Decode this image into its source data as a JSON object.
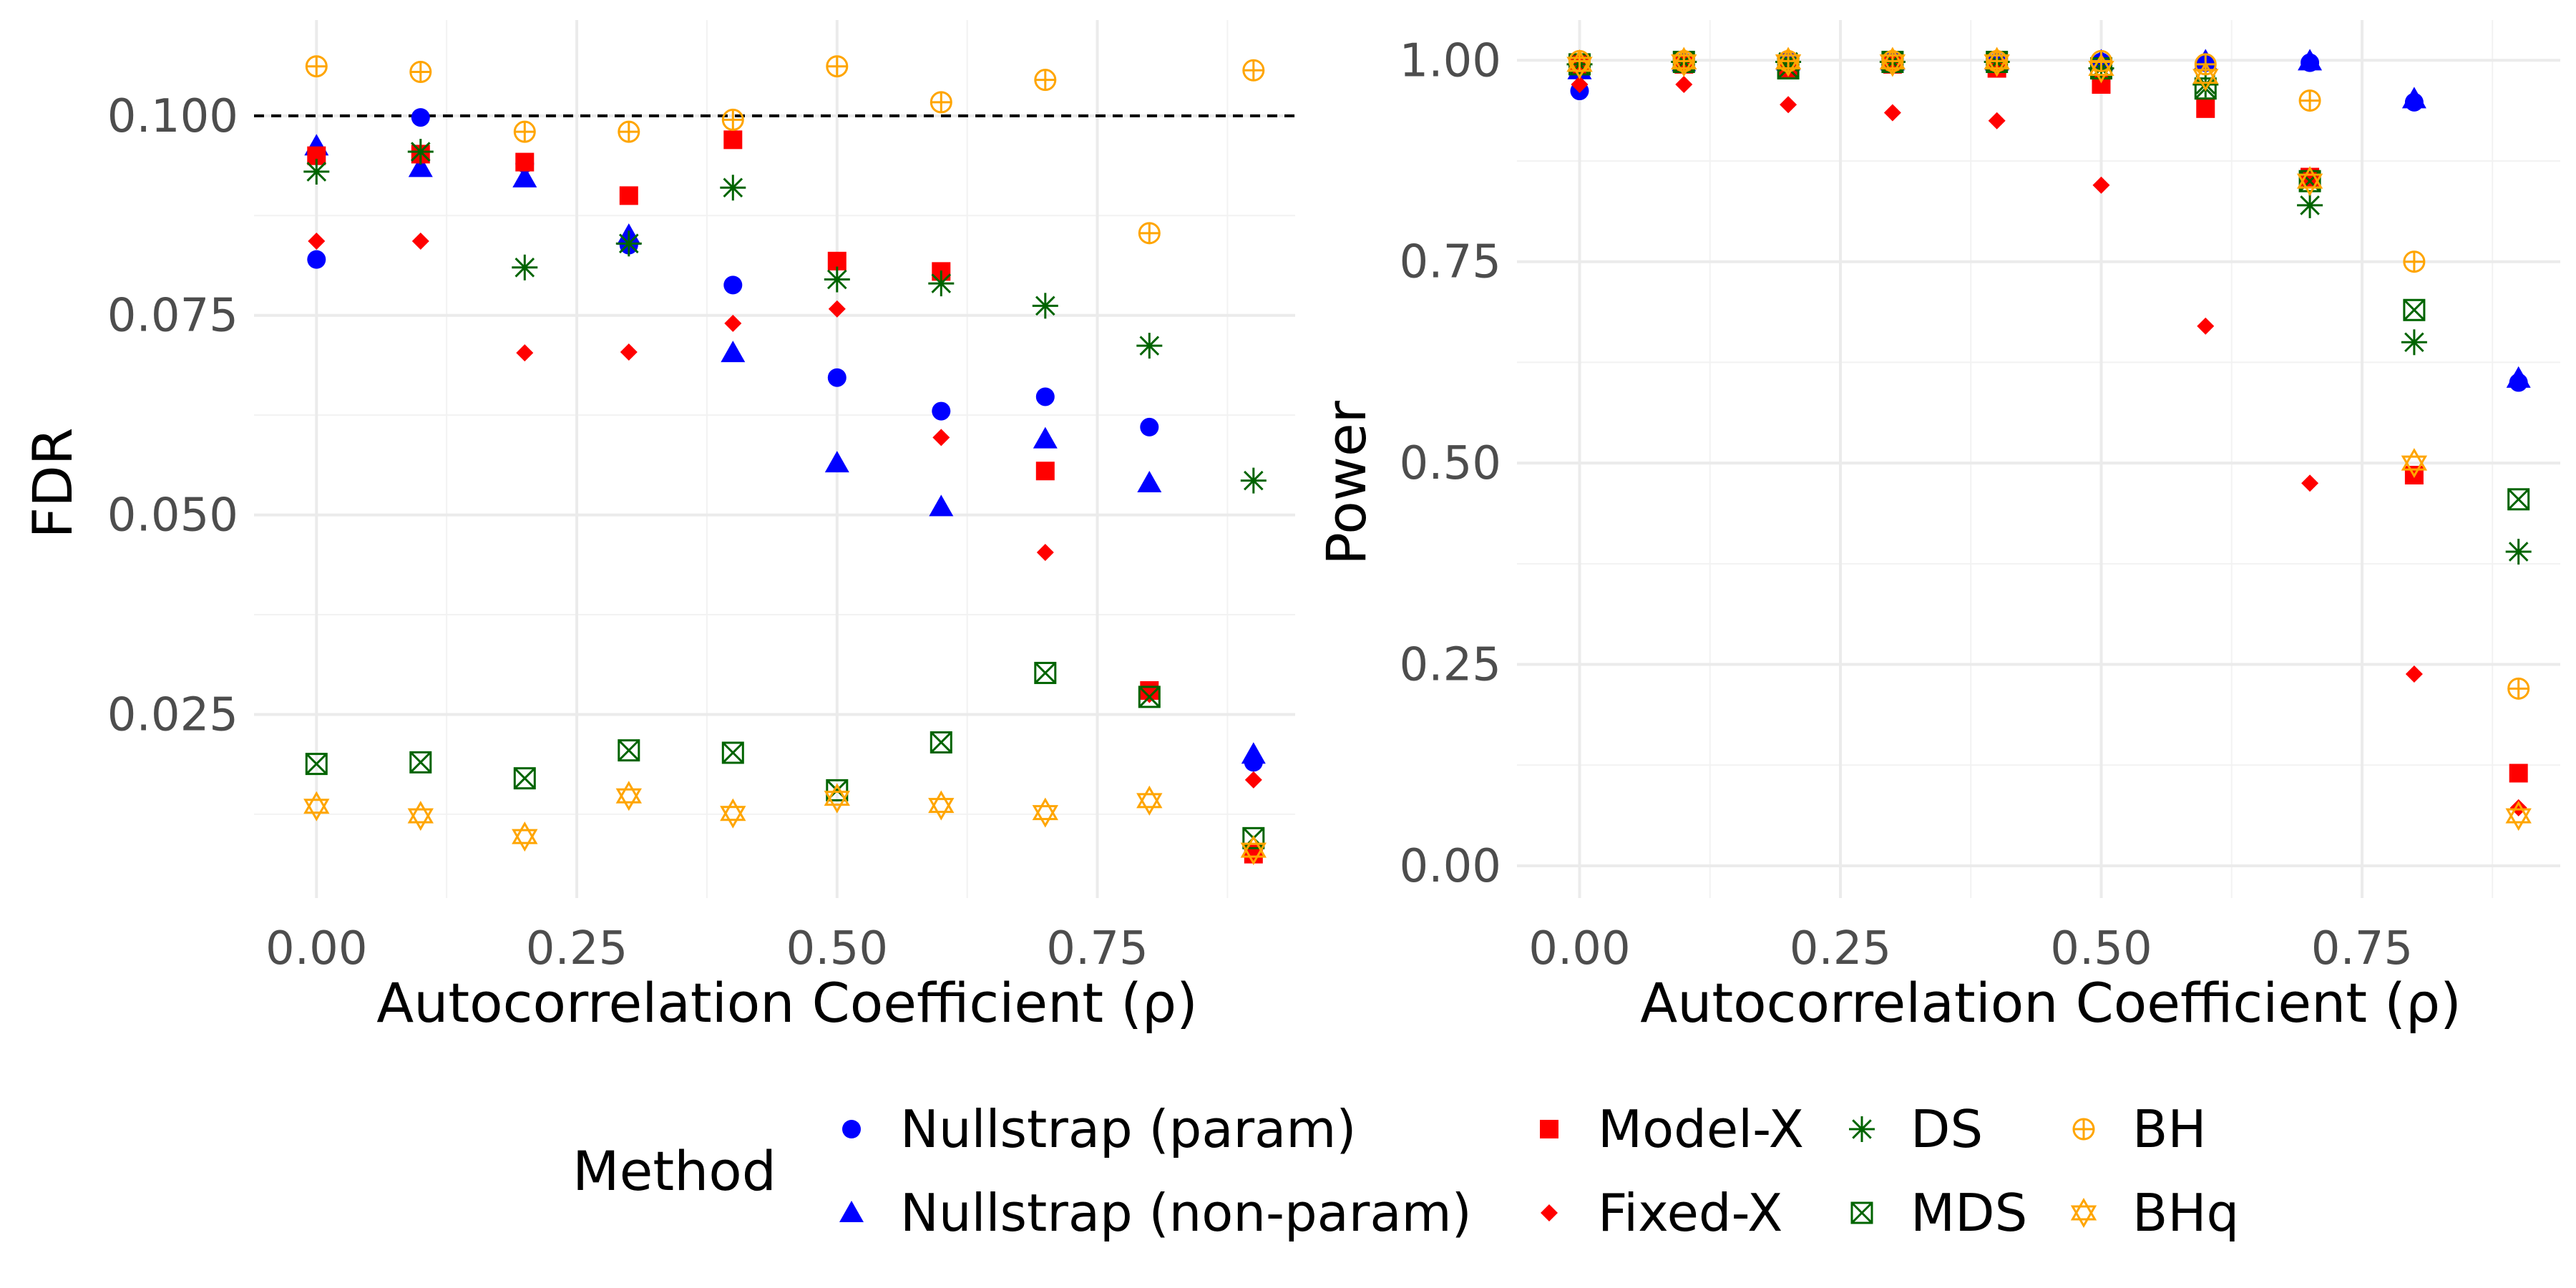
{
  "legend": {
    "title": "Method",
    "entries": [
      {
        "name": "Nullstrap (param)",
        "color": "#0000FF",
        "shape": "filled-circle"
      },
      {
        "name": "Nullstrap (non-param)",
        "color": "#0000FF",
        "shape": "filled-triangle"
      },
      {
        "name": "Model-X",
        "color": "#FF0000",
        "shape": "filled-square"
      },
      {
        "name": "Fixed-X",
        "color": "#FF0000",
        "shape": "filled-diamond"
      },
      {
        "name": "DS",
        "color": "#006400",
        "shape": "asterisk"
      },
      {
        "name": "MDS",
        "color": "#006400",
        "shape": "square-cross"
      },
      {
        "name": "BH",
        "color": "#FFA500",
        "shape": "circle-plus"
      },
      {
        "name": "BHq",
        "color": "#FFA500",
        "shape": "star-of-david"
      }
    ]
  },
  "chart_data": [
    {
      "type": "scatter",
      "title": "",
      "xlabel": "Autocorrelation Coefficient (ρ)",
      "ylabel": "FDR",
      "xlim": [
        -0.06,
        0.94
      ],
      "ylim": [
        0.002,
        0.112
      ],
      "x_ticks": [
        0.0,
        0.25,
        0.5,
        0.75
      ],
      "x_tick_labels": [
        "0.00",
        "0.25",
        "0.50",
        "0.75"
      ],
      "y_ticks": [
        0.025,
        0.05,
        0.075,
        0.1
      ],
      "y_tick_labels": [
        "0.025",
        "0.050",
        "0.075",
        "0.100"
      ],
      "reference_line": {
        "y": 0.1,
        "style": "dashed"
      },
      "x": [
        0.0,
        0.1,
        0.2,
        0.3,
        0.4,
        0.5,
        0.6,
        0.7,
        0.8,
        0.9
      ],
      "series": [
        {
          "name": "Nullstrap (param)",
          "values": [
            0.082,
            0.0998,
            0.094,
            0.0838,
            0.0788,
            0.0672,
            0.063,
            0.0648,
            0.061,
            0.019
          ]
        },
        {
          "name": "Nullstrap (non-param)",
          "values": [
            0.0962,
            0.0935,
            0.0922,
            0.085,
            0.0703,
            0.0565,
            0.051,
            0.0595,
            0.054,
            0.02
          ]
        },
        {
          "name": "Model-X",
          "values": [
            0.095,
            0.0952,
            0.0942,
            0.09,
            0.097,
            0.0818,
            0.0805,
            0.0555,
            0.028,
            0.0075
          ]
        },
        {
          "name": "Fixed-X",
          "values": [
            0.0843,
            0.0843,
            0.0703,
            0.0704,
            0.074,
            0.0758,
            0.0597,
            0.0453,
            0.0275,
            0.0168
          ]
        },
        {
          "name": "DS",
          "values": [
            0.093,
            0.0955,
            0.081,
            0.084,
            0.091,
            0.0795,
            0.079,
            0.0762,
            0.0712,
            0.0543
          ]
        },
        {
          "name": "MDS",
          "values": [
            0.0188,
            0.019,
            0.017,
            0.0205,
            0.0202,
            0.0155,
            0.0215,
            0.0302,
            0.0272,
            0.0095
          ]
        },
        {
          "name": "BH",
          "values": [
            0.1062,
            0.1055,
            0.098,
            0.098,
            0.0995,
            0.1062,
            0.1017,
            0.1045,
            0.0853,
            0.1057
          ]
        },
        {
          "name": "BHq",
          "values": [
            0.0135,
            0.0123,
            0.0097,
            0.0148,
            0.0126,
            0.0145,
            0.0136,
            0.0127,
            0.0142,
            0.008
          ]
        }
      ]
    },
    {
      "type": "scatter",
      "title": "",
      "xlabel": "Autocorrelation Coefficient (ρ)",
      "ylabel": "Power",
      "xlim": [
        -0.06,
        0.94
      ],
      "ylim": [
        -0.04,
        1.05
      ],
      "x_ticks": [
        0.0,
        0.25,
        0.5,
        0.75
      ],
      "x_tick_labels": [
        "0.00",
        "0.25",
        "0.50",
        "0.75"
      ],
      "y_ticks": [
        0.0,
        0.25,
        0.5,
        0.75,
        1.0
      ],
      "y_tick_labels": [
        "0.00",
        "0.25",
        "0.50",
        "0.75",
        "1.00"
      ],
      "x": [
        0.0,
        0.1,
        0.2,
        0.3,
        0.4,
        0.5,
        0.6,
        0.7,
        0.8,
        0.9
      ],
      "series": [
        {
          "name": "Nullstrap (param)",
          "values": [
            0.962,
            0.998,
            0.999,
            0.999,
            0.998,
            0.998,
            0.997,
            0.997,
            0.948,
            0.6
          ]
        },
        {
          "name": "Nullstrap (non-param)",
          "values": [
            0.988,
            0.998,
            0.999,
            0.999,
            0.999,
            0.999,
            0.999,
            0.999,
            0.952,
            0.605
          ]
        },
        {
          "name": "Model-X",
          "values": [
            0.995,
            0.995,
            0.99,
            0.995,
            0.99,
            0.97,
            0.94,
            0.855,
            0.485,
            0.115
          ]
        },
        {
          "name": "Fixed-X",
          "values": [
            0.97,
            0.97,
            0.945,
            0.935,
            0.925,
            0.845,
            0.67,
            0.475,
            0.238,
            0.072
          ]
        },
        {
          "name": "DS",
          "values": [
            0.995,
            0.998,
            0.998,
            0.998,
            0.998,
            0.99,
            0.97,
            0.82,
            0.65,
            0.39
          ]
        },
        {
          "name": "MDS",
          "values": [
            0.995,
            0.998,
            0.99,
            0.998,
            0.998,
            0.99,
            0.965,
            0.85,
            0.69,
            0.455
          ]
        },
        {
          "name": "BH",
          "values": [
            0.999,
            0.999,
            0.999,
            0.999,
            0.999,
            0.999,
            0.995,
            0.95,
            0.75,
            0.22
          ]
        },
        {
          "name": "BHq",
          "values": [
            0.995,
            0.998,
            0.998,
            0.998,
            0.998,
            0.99,
            0.98,
            0.85,
            0.5,
            0.062
          ]
        }
      ]
    }
  ]
}
